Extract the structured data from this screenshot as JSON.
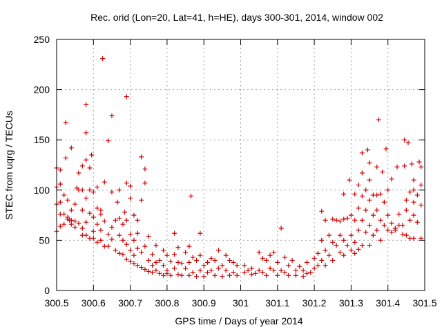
{
  "chart_data": {
    "type": "scatter",
    "title": "Rec. orid (Lon=20, Lat=41, h=HE), days 300-301, 2014, window 002",
    "xlabel": "GPS time / Days of year 2014",
    "ylabel": "STEC from uqrg / TECUs",
    "xlim": [
      300.5,
      301.5
    ],
    "ylim": [
      0,
      250
    ],
    "grid": true,
    "marker": "+",
    "point_color": "#cc0000",
    "x_ticks": [
      {
        "value": 300.5,
        "label": "300.5"
      },
      {
        "value": 300.6,
        "label": "300.6"
      },
      {
        "value": 300.7,
        "label": "300.7"
      },
      {
        "value": 300.8,
        "label": "300.8"
      },
      {
        "value": 300.9,
        "label": "300.9"
      },
      {
        "value": 301.0,
        "label": "301"
      },
      {
        "value": 301.1,
        "label": "301.1"
      },
      {
        "value": 301.2,
        "label": "301.2"
      },
      {
        "value": 301.3,
        "label": "301.3"
      },
      {
        "value": 301.4,
        "label": "301.4"
      },
      {
        "value": 301.5,
        "label": "301.5"
      }
    ],
    "y_ticks": [
      {
        "value": 0,
        "label": "0"
      },
      {
        "value": 50,
        "label": "50"
      },
      {
        "value": 100,
        "label": "100"
      },
      {
        "value": 150,
        "label": "150"
      },
      {
        "value": 200,
        "label": "200"
      },
      {
        "value": 250,
        "label": "250"
      }
    ],
    "points": [
      [
        300.5,
        122
      ],
      [
        300.5,
        103
      ],
      [
        300.5,
        86
      ],
      [
        300.5,
        59
      ],
      [
        300.51,
        120
      ],
      [
        300.51,
        106
      ],
      [
        300.51,
        88
      ],
      [
        300.51,
        76
      ],
      [
        300.51,
        64
      ],
      [
        300.52,
        95
      ],
      [
        300.52,
        76
      ],
      [
        300.52,
        66
      ],
      [
        300.525,
        167
      ],
      [
        300.525,
        132
      ],
      [
        300.53,
        90
      ],
      [
        300.53,
        73
      ],
      [
        300.53,
        71
      ],
      [
        300.535,
        70
      ],
      [
        300.54,
        142
      ],
      [
        300.54,
        80
      ],
      [
        300.54,
        70
      ],
      [
        300.54,
        66
      ],
      [
        300.55,
        86
      ],
      [
        300.55,
        69
      ],
      [
        300.55,
        63
      ],
      [
        300.555,
        102
      ],
      [
        300.56,
        117
      ],
      [
        300.56,
        100
      ],
      [
        300.56,
        67
      ],
      [
        300.57,
        124
      ],
      [
        300.57,
        100
      ],
      [
        300.57,
        80
      ],
      [
        300.57,
        62
      ],
      [
        300.57,
        55
      ],
      [
        300.58,
        185
      ],
      [
        300.58,
        157
      ],
      [
        300.58,
        130
      ],
      [
        300.58,
        92
      ],
      [
        300.58,
        68
      ],
      [
        300.58,
        55
      ],
      [
        300.59,
        122
      ],
      [
        300.59,
        100
      ],
      [
        300.59,
        77
      ],
      [
        300.59,
        52
      ],
      [
        300.595,
        135
      ],
      [
        300.6,
        98
      ],
      [
        300.6,
        73
      ],
      [
        300.6,
        59
      ],
      [
        300.6,
        52
      ],
      [
        300.61,
        103
      ],
      [
        300.61,
        82
      ],
      [
        300.61,
        66
      ],
      [
        300.61,
        48
      ],
      [
        300.62,
        80
      ],
      [
        300.62,
        76
      ],
      [
        300.62,
        60
      ],
      [
        300.62,
        50
      ],
      [
        300.625,
        231
      ],
      [
        300.63,
        108
      ],
      [
        300.63,
        69
      ],
      [
        300.63,
        44
      ],
      [
        300.64,
        149
      ],
      [
        300.64,
        56
      ],
      [
        300.64,
        44
      ],
      [
        300.65,
        174
      ],
      [
        300.65,
        98
      ],
      [
        300.65,
        63
      ],
      [
        300.65,
        51
      ],
      [
        300.66,
        70
      ],
      [
        300.66,
        40
      ],
      [
        300.665,
        88
      ],
      [
        300.67,
        100
      ],
      [
        300.67,
        72
      ],
      [
        300.67,
        55
      ],
      [
        300.67,
        37
      ],
      [
        300.68,
        66
      ],
      [
        300.68,
        50
      ],
      [
        300.68,
        36
      ],
      [
        300.685,
        78
      ],
      [
        300.69,
        193
      ],
      [
        300.69,
        107
      ],
      [
        300.69,
        70
      ],
      [
        300.69,
        46
      ],
      [
        300.69,
        31
      ],
      [
        300.7,
        104
      ],
      [
        300.7,
        92
      ],
      [
        300.7,
        56
      ],
      [
        300.7,
        40
      ],
      [
        300.7,
        29
      ],
      [
        300.71,
        75
      ],
      [
        300.71,
        50
      ],
      [
        300.71,
        35
      ],
      [
        300.71,
        27
      ],
      [
        300.72,
        70
      ],
      [
        300.72,
        57
      ],
      [
        300.72,
        42
      ],
      [
        300.72,
        25
      ],
      [
        300.73,
        133
      ],
      [
        300.73,
        90
      ],
      [
        300.73,
        38
      ],
      [
        300.73,
        23
      ],
      [
        300.74,
        121
      ],
      [
        300.74,
        107
      ],
      [
        300.74,
        44
      ],
      [
        300.74,
        21
      ],
      [
        300.75,
        54
      ],
      [
        300.75,
        30
      ],
      [
        300.75,
        19
      ],
      [
        300.76,
        36
      ],
      [
        300.76,
        25
      ],
      [
        300.76,
        18
      ],
      [
        300.77,
        45
      ],
      [
        300.77,
        28
      ],
      [
        300.77,
        20
      ],
      [
        300.78,
        30
      ],
      [
        300.78,
        17
      ],
      [
        300.79,
        40
      ],
      [
        300.79,
        25
      ],
      [
        300.79,
        15
      ],
      [
        300.8,
        35
      ],
      [
        300.8,
        20
      ],
      [
        300.8,
        17
      ],
      [
        300.81,
        29
      ],
      [
        300.81,
        15
      ],
      [
        300.82,
        57
      ],
      [
        300.82,
        36
      ],
      [
        300.82,
        22
      ],
      [
        300.83,
        43
      ],
      [
        300.83,
        28
      ],
      [
        300.83,
        16
      ],
      [
        300.84,
        27
      ],
      [
        300.84,
        15
      ],
      [
        300.85,
        38
      ],
      [
        300.85,
        22
      ],
      [
        300.86,
        44
      ],
      [
        300.86,
        28
      ],
      [
        300.86,
        15
      ],
      [
        300.865,
        94
      ],
      [
        300.87,
        33
      ],
      [
        300.87,
        18
      ],
      [
        300.88,
        30
      ],
      [
        300.88,
        14
      ],
      [
        300.89,
        57
      ],
      [
        300.89,
        35
      ],
      [
        300.89,
        20
      ],
      [
        300.9,
        25
      ],
      [
        300.9,
        14
      ],
      [
        300.91,
        28
      ],
      [
        300.91,
        18
      ],
      [
        300.92,
        32
      ],
      [
        300.92,
        20
      ],
      [
        300.93,
        30
      ],
      [
        300.93,
        15
      ],
      [
        300.94,
        40
      ],
      [
        300.94,
        22
      ],
      [
        300.95,
        25
      ],
      [
        300.95,
        14
      ],
      [
        300.96,
        35
      ],
      [
        300.96,
        20
      ],
      [
        300.97,
        30
      ],
      [
        300.97,
        15
      ],
      [
        300.98,
        28
      ],
      [
        300.98,
        18
      ],
      [
        300.99,
        25
      ],
      [
        300.99,
        15
      ],
      [
        301.01,
        25
      ],
      [
        301.01,
        18
      ],
      [
        301.02,
        20
      ],
      [
        301.03,
        22
      ],
      [
        301.03,
        16
      ],
      [
        301.04,
        17
      ],
      [
        301.05,
        38
      ],
      [
        301.05,
        20
      ],
      [
        301.06,
        32
      ],
      [
        301.06,
        18
      ],
      [
        301.07,
        30
      ],
      [
        301.07,
        15
      ],
      [
        301.08,
        35
      ],
      [
        301.08,
        22
      ],
      [
        301.09,
        38
      ],
      [
        301.09,
        20
      ],
      [
        301.1,
        28
      ],
      [
        301.1,
        15
      ],
      [
        301.11,
        62
      ],
      [
        301.11,
        20
      ],
      [
        301.12,
        33
      ],
      [
        301.12,
        18
      ],
      [
        301.13,
        25
      ],
      [
        301.13,
        15
      ],
      [
        301.14,
        30
      ],
      [
        301.15,
        20
      ],
      [
        301.15,
        15
      ],
      [
        301.16,
        24
      ],
      [
        301.17,
        20
      ],
      [
        301.17,
        14
      ],
      [
        301.18,
        28
      ],
      [
        301.18,
        17
      ],
      [
        301.19,
        18
      ],
      [
        301.2,
        32
      ],
      [
        301.2,
        22
      ],
      [
        301.21,
        37
      ],
      [
        301.21,
        25
      ],
      [
        301.22,
        79
      ],
      [
        301.22,
        50
      ],
      [
        301.22,
        30
      ],
      [
        301.23,
        70
      ],
      [
        301.23,
        40
      ],
      [
        301.23,
        25
      ],
      [
        301.24,
        55
      ],
      [
        301.24,
        35
      ],
      [
        301.25,
        71
      ],
      [
        301.25,
        48
      ],
      [
        301.25,
        30
      ],
      [
        301.26,
        70
      ],
      [
        301.26,
        45
      ],
      [
        301.27,
        69
      ],
      [
        301.27,
        55
      ],
      [
        301.27,
        38
      ],
      [
        301.28,
        96
      ],
      [
        301.28,
        71
      ],
      [
        301.28,
        50
      ],
      [
        301.28,
        35
      ],
      [
        301.29,
        72
      ],
      [
        301.29,
        45
      ],
      [
        301.295,
        110
      ],
      [
        301.3,
        75
      ],
      [
        301.3,
        55
      ],
      [
        301.3,
        40
      ],
      [
        301.31,
        96
      ],
      [
        301.31,
        70
      ],
      [
        301.31,
        48
      ],
      [
        301.31,
        37
      ],
      [
        301.32,
        105
      ],
      [
        301.32,
        82
      ],
      [
        301.32,
        60
      ],
      [
        301.32,
        41
      ],
      [
        301.33,
        137
      ],
      [
        301.33,
        117
      ],
      [
        301.33,
        94
      ],
      [
        301.33,
        70
      ],
      [
        301.33,
        45
      ],
      [
        301.34,
        100
      ],
      [
        301.34,
        80
      ],
      [
        301.34,
        58
      ],
      [
        301.345,
        140
      ],
      [
        301.35,
        127
      ],
      [
        301.35,
        110
      ],
      [
        301.35,
        90
      ],
      [
        301.35,
        65
      ],
      [
        301.35,
        45
      ],
      [
        301.36,
        95
      ],
      [
        301.36,
        75
      ],
      [
        301.36,
        55
      ],
      [
        301.37,
        123
      ],
      [
        301.37,
        95
      ],
      [
        301.37,
        80
      ],
      [
        301.37,
        60
      ],
      [
        301.375,
        170
      ],
      [
        301.38,
        96
      ],
      [
        301.38,
        70
      ],
      [
        301.38,
        50
      ],
      [
        301.385,
        118
      ],
      [
        301.39,
        88
      ],
      [
        301.39,
        65
      ],
      [
        301.395,
        141
      ],
      [
        301.4,
        100
      ],
      [
        301.4,
        75
      ],
      [
        301.4,
        60
      ],
      [
        301.41,
        111
      ],
      [
        301.41,
        67
      ],
      [
        301.41,
        58
      ],
      [
        301.42,
        62
      ],
      [
        301.42,
        60
      ],
      [
        301.425,
        123
      ],
      [
        301.43,
        76
      ],
      [
        301.43,
        65
      ],
      [
        301.44,
        65
      ],
      [
        301.44,
        56
      ],
      [
        301.445,
        150
      ],
      [
        301.445,
        124
      ],
      [
        301.45,
        90
      ],
      [
        301.45,
        80
      ],
      [
        301.45,
        55
      ],
      [
        301.455,
        147
      ],
      [
        301.46,
        98
      ],
      [
        301.46,
        70
      ],
      [
        301.46,
        52
      ],
      [
        301.465,
        126
      ],
      [
        301.47,
        110
      ],
      [
        301.47,
        100
      ],
      [
        301.47,
        88
      ],
      [
        301.47,
        75
      ],
      [
        301.47,
        52
      ],
      [
        301.48,
        95
      ],
      [
        301.48,
        68
      ],
      [
        301.485,
        128
      ],
      [
        301.49,
        123
      ],
      [
        301.49,
        105
      ],
      [
        301.49,
        85
      ],
      [
        301.49,
        52
      ]
    ]
  }
}
